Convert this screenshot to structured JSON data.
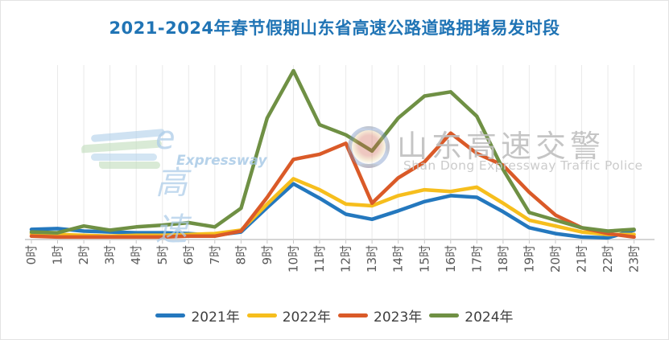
{
  "title": "2021-2024年春节假期山东省高速公路道路拥堵易发时段",
  "title_color": "#2074B5",
  "watermarks": {
    "left_logo": {
      "text": "e高速",
      "subtext": "Expressway"
    },
    "center": {
      "badge": "police-badge-emblem",
      "text": "山东高速交警",
      "subtext": "Shan Dong Expressway Traffic Police"
    }
  },
  "chart_data": {
    "type": "line",
    "title": "2021-2024年春节假期山东省高速公路道路拥堵易发时段",
    "xlabel": "",
    "ylabel": "",
    "categories": [
      "0时",
      "1时",
      "2时",
      "3时",
      "4时",
      "5时",
      "6时",
      "7时",
      "8时",
      "9时",
      "10时",
      "11时",
      "12时",
      "13时",
      "14时",
      "15时",
      "16时",
      "17时",
      "18时",
      "19时",
      "20时",
      "21时",
      "22时",
      "23时"
    ],
    "series": [
      {
        "name": "2021年",
        "color": "#2478BE",
        "values": [
          6,
          6.5,
          5,
          4.5,
          4,
          4,
          3.5,
          2.5,
          4.5,
          19,
          33,
          24.5,
          15,
          12,
          17,
          22.5,
          26,
          25,
          16.5,
          7,
          3.5,
          1.5,
          1,
          5.5
        ]
      },
      {
        "name": "2022年",
        "color": "#F6BE1D",
        "values": [
          3.5,
          3,
          2.5,
          2,
          2.5,
          2.5,
          3,
          3.5,
          5.5,
          21,
          36,
          29.5,
          21,
          20,
          26,
          29.5,
          28.5,
          31,
          21.5,
          11.5,
          8,
          4.5,
          3,
          3
        ]
      },
      {
        "name": "2023年",
        "color": "#DA5A28",
        "values": [
          2,
          1.5,
          1.5,
          1.5,
          1.5,
          1.5,
          2,
          2,
          5,
          25,
          47.5,
          50.5,
          57,
          21.5,
          36.5,
          46,
          63,
          51,
          44,
          28,
          14.5,
          7,
          3.5,
          1.5
        ]
      },
      {
        "name": "2024年",
        "color": "#6F9044",
        "values": [
          4.5,
          4,
          8,
          5.5,
          7.5,
          8.5,
          10,
          7.5,
          18.5,
          72,
          100,
          68,
          62,
          52.5,
          72,
          85,
          87.5,
          73,
          41.5,
          16,
          11.5,
          7,
          5,
          6
        ]
      }
    ],
    "ylim": [
      0,
      105
    ],
    "y_axis_labels_visible": false,
    "grid": "vertical-only",
    "legend_position": "bottom",
    "note": "values estimated from pixel positions; no numeric y-axis shown in source"
  }
}
